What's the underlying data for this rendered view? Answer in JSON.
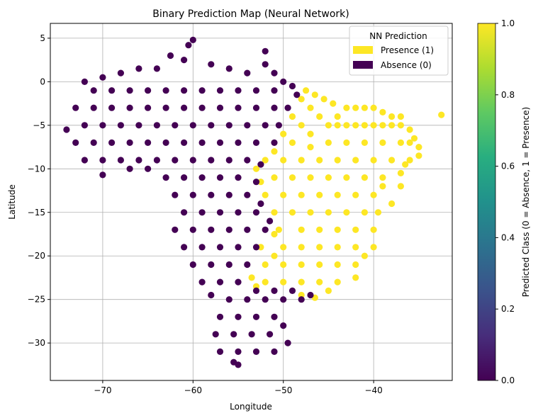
{
  "chart_data": {
    "type": "scatter",
    "title": "Binary Prediction Map (Neural Network)",
    "xlabel": "Longitude",
    "ylabel": "Latitude",
    "xlim": [
      -75.8,
      -31.3
    ],
    "ylim": [
      -34.3,
      6.7
    ],
    "xticks": [
      -70,
      -60,
      -50,
      -40
    ],
    "yticks": [
      5,
      0,
      -5,
      -10,
      -15,
      -20,
      -25,
      -30
    ],
    "grid": true,
    "legend": {
      "title": "NN Prediction",
      "placement": "upper right",
      "entries": [
        {
          "label": "Presence (1)",
          "color": "#fde725"
        },
        {
          "label": "Absence (0)",
          "color": "#440154"
        }
      ]
    },
    "colorbar": {
      "label": "Predicted Class (0 = Absence, 1 = Presence)",
      "range": [
        0,
        1
      ],
      "ticks": [
        "0.0",
        "0.2",
        "0.4",
        "0.6",
        "0.8",
        "1.0"
      ],
      "colormap": "viridis"
    },
    "series": [
      {
        "name": "Presence (1)",
        "color": "#fde725",
        "points": [
          [
            -47.5,
            -1
          ],
          [
            -46.5,
            -1.5
          ],
          [
            -48,
            -2
          ],
          [
            -45.5,
            -2
          ],
          [
            -44.5,
            -2.5
          ],
          [
            -47,
            -3
          ],
          [
            -43,
            -3
          ],
          [
            -42,
            -3
          ],
          [
            -41,
            -3
          ],
          [
            -40,
            -3
          ],
          [
            -39,
            -3.5
          ],
          [
            -38,
            -4
          ],
          [
            -37,
            -4
          ],
          [
            -49,
            -4
          ],
          [
            -46,
            -4
          ],
          [
            -48,
            -5
          ],
          [
            -45,
            -5
          ],
          [
            -44,
            -5
          ],
          [
            -43,
            -5
          ],
          [
            -42,
            -5
          ],
          [
            -41,
            -5
          ],
          [
            -40,
            -5
          ],
          [
            -39,
            -5
          ],
          [
            -38,
            -5
          ],
          [
            -37,
            -5
          ],
          [
            -36,
            -5.5
          ],
          [
            -35.5,
            -6.5
          ],
          [
            -35,
            -7.5
          ],
          [
            -35,
            -8.5
          ],
          [
            -32.5,
            -3.8
          ],
          [
            -50,
            -6
          ],
          [
            -47,
            -6
          ],
          [
            -45,
            -7
          ],
          [
            -43,
            -7
          ],
          [
            -41,
            -7
          ],
          [
            -39,
            -7
          ],
          [
            -37,
            -7
          ],
          [
            -36,
            -7
          ],
          [
            -49,
            -7
          ],
          [
            -52,
            -9
          ],
          [
            -50,
            -9
          ],
          [
            -48,
            -9
          ],
          [
            -46,
            -9
          ],
          [
            -44,
            -9
          ],
          [
            -42,
            -9
          ],
          [
            -40,
            -9
          ],
          [
            -38,
            -9
          ],
          [
            -36,
            -9
          ],
          [
            -37,
            -10.5
          ],
          [
            -39,
            -11
          ],
          [
            -41,
            -11
          ],
          [
            -43,
            -11
          ],
          [
            -45,
            -11
          ],
          [
            -47,
            -11
          ],
          [
            -49,
            -11
          ],
          [
            -51,
            -11
          ],
          [
            -53,
            -10
          ],
          [
            -52,
            -13
          ],
          [
            -50,
            -13
          ],
          [
            -48,
            -13
          ],
          [
            -46,
            -13
          ],
          [
            -44,
            -13
          ],
          [
            -42,
            -13
          ],
          [
            -40,
            -13
          ],
          [
            -39,
            -12
          ],
          [
            -39.5,
            -15
          ],
          [
            -41,
            -15
          ],
          [
            -43,
            -15
          ],
          [
            -45,
            -15
          ],
          [
            -47,
            -15
          ],
          [
            -49,
            -15
          ],
          [
            -51,
            -15
          ],
          [
            -50.5,
            -17
          ],
          [
            -48,
            -17
          ],
          [
            -46,
            -17
          ],
          [
            -44,
            -17
          ],
          [
            -42,
            -17
          ],
          [
            -40,
            -17
          ],
          [
            -40,
            -19
          ],
          [
            -42,
            -19
          ],
          [
            -44,
            -19
          ],
          [
            -46,
            -19
          ],
          [
            -48,
            -19
          ],
          [
            -50,
            -19
          ],
          [
            -51,
            -20
          ],
          [
            -52,
            -21
          ],
          [
            -50,
            -21
          ],
          [
            -48,
            -21
          ],
          [
            -46,
            -21
          ],
          [
            -44,
            -21
          ],
          [
            -42,
            -21
          ],
          [
            -41,
            -20
          ],
          [
            -42,
            -22.5
          ],
          [
            -44,
            -23
          ],
          [
            -46,
            -23
          ],
          [
            -48,
            -23
          ],
          [
            -50,
            -23
          ],
          [
            -52,
            -23
          ],
          [
            -53.5,
            -22.5
          ],
          [
            -45,
            -24
          ],
          [
            -48,
            -24.5
          ],
          [
            -46.5,
            -24.8
          ],
          [
            -53,
            -23.5
          ],
          [
            -37,
            -12
          ],
          [
            -38,
            -14
          ],
          [
            -36.5,
            -9.5
          ],
          [
            -44,
            -4
          ],
          [
            -47,
            -7.5
          ],
          [
            -51,
            -8
          ],
          [
            -52.5,
            -11.5
          ],
          [
            -51,
            -17.5
          ],
          [
            -52.5,
            -19
          ]
        ]
      },
      {
        "name": "Absence (0)",
        "color": "#440154",
        "points": [
          [
            -60,
            4.8
          ],
          [
            -60.5,
            4.2
          ],
          [
            -62.5,
            3
          ],
          [
            -61,
            2.5
          ],
          [
            -58,
            2
          ],
          [
            -56,
            1.5
          ],
          [
            -54,
            1
          ],
          [
            -52,
            3.5
          ],
          [
            -52,
            2
          ],
          [
            -51,
            1
          ],
          [
            -50,
            0
          ],
          [
            -49,
            -0.5
          ],
          [
            -48.5,
            -1.5
          ],
          [
            -64,
            1.5
          ],
          [
            -66,
            1.5
          ],
          [
            -68,
            1
          ],
          [
            -70,
            0.5
          ],
          [
            -72,
            0
          ],
          [
            -71,
            -1
          ],
          [
            -69,
            -1
          ],
          [
            -67,
            -1
          ],
          [
            -65,
            -1
          ],
          [
            -63,
            -1
          ],
          [
            -61,
            -1
          ],
          [
            -59,
            -1
          ],
          [
            -57,
            -1
          ],
          [
            -55,
            -1
          ],
          [
            -53,
            -1
          ],
          [
            -51,
            -1
          ],
          [
            -73,
            -3
          ],
          [
            -71,
            -3
          ],
          [
            -69,
            -3
          ],
          [
            -67,
            -3
          ],
          [
            -65,
            -3
          ],
          [
            -63,
            -3
          ],
          [
            -61,
            -3
          ],
          [
            -59,
            -3
          ],
          [
            -57,
            -3
          ],
          [
            -55,
            -3
          ],
          [
            -53,
            -3
          ],
          [
            -51,
            -3
          ],
          [
            -49.5,
            -3
          ],
          [
            -74,
            -5.5
          ],
          [
            -72,
            -5
          ],
          [
            -70,
            -5
          ],
          [
            -68,
            -5
          ],
          [
            -66,
            -5
          ],
          [
            -64,
            -5
          ],
          [
            -62,
            -5
          ],
          [
            -60,
            -5
          ],
          [
            -58,
            -5
          ],
          [
            -56,
            -5
          ],
          [
            -54,
            -5
          ],
          [
            -52,
            -5
          ],
          [
            -50.5,
            -5
          ],
          [
            -73,
            -7
          ],
          [
            -71,
            -7
          ],
          [
            -69,
            -7
          ],
          [
            -67,
            -7
          ],
          [
            -65,
            -7
          ],
          [
            -63,
            -7
          ],
          [
            -61,
            -7
          ],
          [
            -59,
            -7
          ],
          [
            -57,
            -7
          ],
          [
            -55,
            -7
          ],
          [
            -53,
            -7
          ],
          [
            -51,
            -7
          ],
          [
            -72,
            -9
          ],
          [
            -70,
            -9
          ],
          [
            -68,
            -9
          ],
          [
            -66,
            -9
          ],
          [
            -64,
            -9
          ],
          [
            -62,
            -9
          ],
          [
            -60,
            -9
          ],
          [
            -58,
            -9
          ],
          [
            -56,
            -9
          ],
          [
            -54,
            -9
          ],
          [
            -52.5,
            -9.5
          ],
          [
            -70,
            -10.7
          ],
          [
            -67,
            -10
          ],
          [
            -65,
            -10
          ],
          [
            -63,
            -11
          ],
          [
            -61,
            -11
          ],
          [
            -59,
            -11
          ],
          [
            -57,
            -11
          ],
          [
            -55,
            -11
          ],
          [
            -53,
            -11.5
          ],
          [
            -62,
            -13
          ],
          [
            -60,
            -13
          ],
          [
            -58,
            -13
          ],
          [
            -56,
            -13
          ],
          [
            -54,
            -13
          ],
          [
            -52.5,
            -14
          ],
          [
            -61,
            -15
          ],
          [
            -59,
            -15
          ],
          [
            -57,
            -15
          ],
          [
            -55,
            -15
          ],
          [
            -53,
            -15
          ],
          [
            -51.5,
            -16
          ],
          [
            -62,
            -17
          ],
          [
            -60,
            -17
          ],
          [
            -58,
            -17
          ],
          [
            -56,
            -17
          ],
          [
            -54,
            -17
          ],
          [
            -52,
            -17
          ],
          [
            -61,
            -19
          ],
          [
            -59,
            -19
          ],
          [
            -57,
            -19
          ],
          [
            -55,
            -19
          ],
          [
            -53,
            -19
          ],
          [
            -60,
            -21
          ],
          [
            -58,
            -21
          ],
          [
            -56,
            -21
          ],
          [
            -54,
            -21
          ],
          [
            -59,
            -23
          ],
          [
            -57,
            -23
          ],
          [
            -55,
            -23
          ],
          [
            -53,
            -24
          ],
          [
            -51,
            -24
          ],
          [
            -49,
            -24
          ],
          [
            -47,
            -24.5
          ],
          [
            -58,
            -24.5
          ],
          [
            -56,
            -25
          ],
          [
            -54,
            -25
          ],
          [
            -52,
            -25
          ],
          [
            -50,
            -25
          ],
          [
            -48,
            -25
          ],
          [
            -57,
            -27
          ],
          [
            -55,
            -27
          ],
          [
            -53,
            -27
          ],
          [
            -51,
            -27
          ],
          [
            -57.5,
            -29
          ],
          [
            -55.5,
            -29
          ],
          [
            -53.5,
            -29
          ],
          [
            -51.5,
            -29
          ],
          [
            -57,
            -31
          ],
          [
            -55,
            -31
          ],
          [
            -53,
            -31
          ],
          [
            -51,
            -31
          ],
          [
            -55.5,
            -32.2
          ],
          [
            -55,
            -32.5
          ],
          [
            -49.5,
            -30
          ],
          [
            -50,
            -28
          ]
        ]
      }
    ]
  }
}
